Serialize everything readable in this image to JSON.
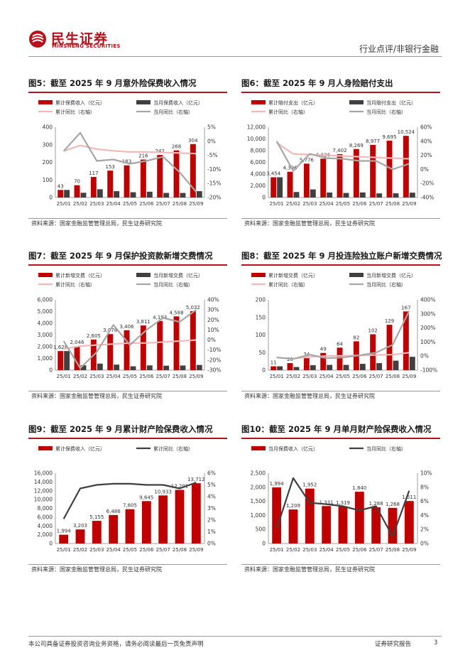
{
  "header": {
    "brand_cn": "民生证券",
    "brand_en": "MINSHENG SECURITIES",
    "category": "行业点评/非银行金融"
  },
  "colors": {
    "bar_main": "#c00000",
    "bar_monthly": "#404040",
    "line_cum": "#f2b8b8",
    "line_month": "#a6a6a6",
    "line_dark": "#404040"
  },
  "panels": [
    {
      "title": "图5：截至 2025 年 9 月意外险保费收入情况",
      "source": "资料来源：国家金融监管管理总局，民生证券研究院"
    },
    {
      "title": "图6：截至 2025 年 9 月人身险赔付支出",
      "source": "资料来源：国家金融监管管理总局，民生证券研究院"
    },
    {
      "title": "图7：截至 2025 年 9 月保护投资款新增交费情况",
      "source": "资料来源：国家金融监管管理总局，民生证券研究院"
    },
    {
      "title": "图8：截至 2025 年 9 月投连险独立账户新增交费情况",
      "source": "资料来源：国家金融监管管理总局，民生证券研究院"
    },
    {
      "title": "图9：截至 2025 年 9 月累计财产险保费收入情况",
      "source": "资料来源：国家金融监管管理总局，民生证券研究院"
    },
    {
      "title": "图10：截至 2025 年 9 月单月财产险保费收入情况",
      "source": "资料来源：国家金融监管管理总局，民生证券研究院"
    }
  ],
  "chart_data": [
    {
      "type": "bar",
      "title": "图5：截至 2025 年 9 月意外险保费收入情况",
      "categories": [
        "25/01",
        "25/02",
        "25/03",
        "25/04",
        "25/05",
        "25/06",
        "25/07",
        "25/08",
        "25/09"
      ],
      "series": [
        {
          "name": "累计保费收入（亿元）",
          "kind": "bar",
          "color": "#c00000",
          "values": [
            43,
            70,
            117,
            153,
            183,
            216,
            242,
            268,
            304
          ],
          "labels": [
            "43",
            "70",
            "117",
            "153",
            "183",
            "216",
            "242",
            "268",
            "304"
          ]
        },
        {
          "name": "当月保费收入（亿元）",
          "kind": "bar",
          "color": "#404040",
          "values": [
            43,
            27,
            47,
            36,
            30,
            33,
            26,
            26,
            36
          ]
        },
        {
          "name": "累计同比（右轴）",
          "kind": "line",
          "axis": "right",
          "color": "#f2b8b8",
          "values": [
            -3.5,
            -1.5,
            -2.8,
            -3.4,
            -3.8,
            -3.8,
            -4.0,
            -4.2,
            -4.4
          ]
        },
        {
          "name": "当月同比（右轴）",
          "kind": "line",
          "axis": "right",
          "color": "#a6a6a6",
          "values": [
            -3.5,
            3.0,
            -7.0,
            -6.5,
            -8.0,
            -7.0,
            -5.5,
            -11.0,
            -18.0
          ]
        }
      ],
      "ylim": [
        0,
        400
      ],
      "yticks": [
        "0",
        "100",
        "200",
        "300",
        "400"
      ],
      "y2lim": [
        -20,
        5
      ],
      "y2ticks": [
        "-20%",
        "-15%",
        "-10%",
        "-5%",
        "0%",
        "5%"
      ],
      "legend_position": "top"
    },
    {
      "type": "bar",
      "title": "图6：截至 2025 年 9 月人身险赔付支出",
      "categories": [
        "25/01",
        "25/02",
        "25/03",
        "25/04",
        "25/05",
        "25/06",
        "25/07",
        "25/08",
        "25/09"
      ],
      "series": [
        {
          "name": "累计赔付支出（亿元）",
          "kind": "bar",
          "color": "#c00000",
          "values": [
            3454,
            4396,
            5776,
            6626,
            7402,
            8269,
            8977,
            9695,
            10524
          ],
          "labels": [
            "3,454",
            "4,396",
            "5,776",
            "6,626",
            "7,402",
            "8,269",
            "8,977",
            "9,695",
            "10,524"
          ]
        },
        {
          "name": "当月赔付支出（亿元）",
          "kind": "bar",
          "color": "#404040",
          "values": [
            3454,
            942,
            1380,
            850,
            776,
            867,
            708,
            718,
            829
          ]
        },
        {
          "name": "累计同比（右轴）",
          "kind": "line",
          "axis": "right",
          "color": "#f2b8b8",
          "values": [
            38,
            22,
            21,
            20,
            19,
            18,
            17,
            16,
            15
          ]
        },
        {
          "name": "当月同比（右轴）",
          "kind": "line",
          "axis": "right",
          "color": "#a6a6a6",
          "values": [
            40,
            -2,
            22,
            16,
            15,
            12,
            12,
            0,
            8
          ]
        }
      ],
      "ylim": [
        0,
        12000
      ],
      "yticks": [
        "0",
        "2,000",
        "4,000",
        "6,000",
        "8,000",
        "10,000",
        "12,000"
      ],
      "y2lim": [
        -40,
        60
      ],
      "y2ticks": [
        "-40%",
        "-20%",
        "0%",
        "20%",
        "40%",
        "60%"
      ],
      "legend_position": "top"
    },
    {
      "type": "bar",
      "title": "图7：截至 2025 年 9 月保护投资款新增交费情况",
      "categories": [
        "25/01",
        "25/02",
        "25/03",
        "25/04",
        "25/05",
        "25/06",
        "25/07",
        "25/08",
        "25/09"
      ],
      "series": [
        {
          "name": "累计新增交费（亿元）",
          "kind": "bar",
          "color": "#c00000",
          "values": [
            1628,
            2046,
            2605,
            3078,
            3406,
            3811,
            4193,
            4588,
            5032
          ],
          "labels": [
            "1,628",
            "2,046",
            "2,605",
            "3,078",
            "3,406",
            "3,811",
            "4,193",
            "4,588",
            "5,032"
          ]
        },
        {
          "name": "当月新增交费（亿元）",
          "kind": "bar",
          "color": "#404040",
          "values": [
            1628,
            418,
            559,
            473,
            328,
            405,
            382,
            395,
            444
          ]
        },
        {
          "name": "累计同比（右轴）",
          "kind": "line",
          "axis": "right",
          "color": "#f2b8b8",
          "values": [
            -9,
            -6,
            -5,
            -4,
            -3,
            -3,
            -2,
            -1,
            0
          ]
        },
        {
          "name": "当月同比（右轴）",
          "kind": "line",
          "axis": "right",
          "color": "#a6a6a6",
          "values": [
            -1,
            -28,
            -12,
            15,
            -5,
            10,
            22,
            18,
            30
          ]
        }
      ],
      "ylim": [
        0,
        6000
      ],
      "yticks": [
        "0",
        "1,000",
        "2,000",
        "3,000",
        "4,000",
        "5,000",
        "6,000"
      ],
      "y2lim": [
        -30,
        40
      ],
      "y2ticks": [
        "-30%",
        "-20%",
        "-10%",
        "0%",
        "10%",
        "20%",
        "30%",
        "40%"
      ],
      "legend_position": "top"
    },
    {
      "type": "bar",
      "title": "图8：截至 2025 年 9 月投连险独立账户新增交费情况",
      "categories": [
        "25/01",
        "25/02",
        "25/03",
        "25/04",
        "25/05",
        "25/06",
        "25/07",
        "25/08",
        "25/09"
      ],
      "series": [
        {
          "name": "累计新增交费（亿元）",
          "kind": "bar",
          "color": "#c00000",
          "values": [
            11,
            20,
            34,
            49,
            64,
            82,
            102,
            129,
            167
          ],
          "labels": [
            "11",
            "20",
            "34",
            "49",
            "64",
            "82",
            "102",
            "129",
            "167"
          ]
        },
        {
          "name": "当月新增交费（亿元）",
          "kind": "bar",
          "color": "#404040",
          "values": [
            11,
            9,
            14,
            15,
            15,
            18,
            20,
            27,
            38
          ]
        },
        {
          "name": "累计同比（右轴）",
          "kind": "line",
          "axis": "right",
          "color": "#f2b8b8",
          "values": [
            -10,
            -18,
            -5,
            0,
            2,
            5,
            8,
            10,
            25
          ]
        },
        {
          "name": "当月同比（右轴）",
          "kind": "line",
          "axis": "right",
          "color": "#a6a6a6",
          "values": [
            -10,
            -20,
            10,
            -15,
            -10,
            5,
            25,
            80,
            320
          ]
        }
      ],
      "ylim": [
        0,
        200
      ],
      "yticks": [
        "0",
        "50",
        "100",
        "150",
        "200"
      ],
      "y2lim": [
        -100,
        400
      ],
      "y2ticks": [
        "-100%",
        "0%",
        "100%",
        "200%",
        "300%",
        "400%"
      ],
      "legend_position": "top"
    },
    {
      "type": "bar",
      "title": "图9：截至 2025 年 9 月累计财产险保费收入情况",
      "categories": [
        "25/01",
        "25/02",
        "25/03",
        "25/04",
        "25/05",
        "25/06",
        "25/07",
        "25/08",
        "25/09"
      ],
      "series": [
        {
          "name": "累计保费收入（亿元）",
          "kind": "bar",
          "color": "#c00000",
          "values": [
            1994,
            3203,
            5155,
            6486,
            7805,
            9645,
            10933,
            12201,
            13712
          ],
          "labels": [
            "1,994",
            "3,203",
            "5,155",
            "6,486",
            "7,805",
            "9,645",
            "10,933",
            "12,201",
            "13,712"
          ]
        },
        {
          "name": "累计同比（右轴）",
          "kind": "line",
          "axis": "right",
          "color": "#404040",
          "values": [
            2.1,
            4.7,
            5.0,
            5.1,
            5.1,
            5.0,
            5.0,
            4.7,
            5.2
          ]
        }
      ],
      "ylim": [
        0,
        16000
      ],
      "yticks": [
        "0",
        "2,000",
        "4,000",
        "6,000",
        "8,000",
        "10,000",
        "12,000",
        "14,000",
        "16,000"
      ],
      "y2lim": [
        0,
        6
      ],
      "y2ticks": [
        "0%",
        "1%",
        "2%",
        "3%",
        "4%",
        "5%",
        "6%"
      ],
      "legend_position": "top"
    },
    {
      "type": "bar",
      "title": "图10：截至 2025 年 9 月单月财产险保费收入情况",
      "categories": [
        "25/01",
        "25/02",
        "25/03",
        "25/04",
        "25/05",
        "25/06",
        "25/07",
        "25/08",
        "25/09"
      ],
      "series": [
        {
          "name": "当月保费收入（亿元）",
          "kind": "bar",
          "color": "#c00000",
          "values": [
            1994,
            1209,
            1952,
            1331,
            1319,
            1840,
            1288,
            1268,
            1511
          ],
          "labels": [
            "1,994",
            "1,209",
            "1,952",
            "1,331",
            "1,319",
            "1,840",
            "1,288",
            "1,268",
            "1,511"
          ]
        },
        {
          "name": "当月同比（右轴）",
          "kind": "line",
          "axis": "right",
          "color": "#404040",
          "values": [
            2.1,
            9.3,
            5.8,
            5.6,
            5.3,
            4.7,
            5.3,
            1.0,
            7.5
          ]
        }
      ],
      "ylim": [
        0,
        2500
      ],
      "yticks": [
        "0",
        "500",
        "1,000",
        "1,500",
        "2,000",
        "2,500"
      ],
      "y2lim": [
        0,
        10
      ],
      "y2ticks": [
        "0%",
        "2%",
        "4%",
        "6%",
        "8%",
        "10%"
      ],
      "legend_position": "top"
    }
  ],
  "footer": {
    "disclaimer": "本公司具备证券投资咨询业务资格，请务必阅读最后一页免责声明",
    "report_type": "证券研究报告",
    "page_number": "3"
  }
}
